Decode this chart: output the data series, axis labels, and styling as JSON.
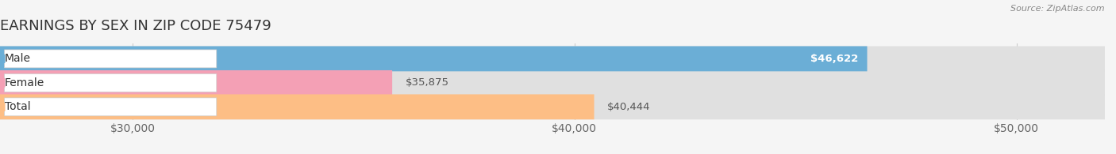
{
  "title": "EARNINGS BY SEX IN ZIP CODE 75479",
  "source": "Source: ZipAtlas.com",
  "categories": [
    "Male",
    "Female",
    "Total"
  ],
  "values": [
    46622,
    35875,
    40444
  ],
  "bar_colors": [
    "#6baed6",
    "#f4a0b5",
    "#fdbe85"
  ],
  "value_labels": [
    "$46,622",
    "$35,875",
    "$40,444"
  ],
  "value_inside": [
    true,
    false,
    false
  ],
  "xlim": [
    27000,
    52000
  ],
  "xticks": [
    30000,
    40000,
    50000
  ],
  "xtick_labels": [
    "$30,000",
    "$40,000",
    "$50,000"
  ],
  "background_color": "#f5f5f5",
  "bar_bg_color": "#e0e0e0",
  "title_fontsize": 13,
  "tick_fontsize": 10,
  "value_fontsize": 9.5,
  "label_fontsize": 10
}
